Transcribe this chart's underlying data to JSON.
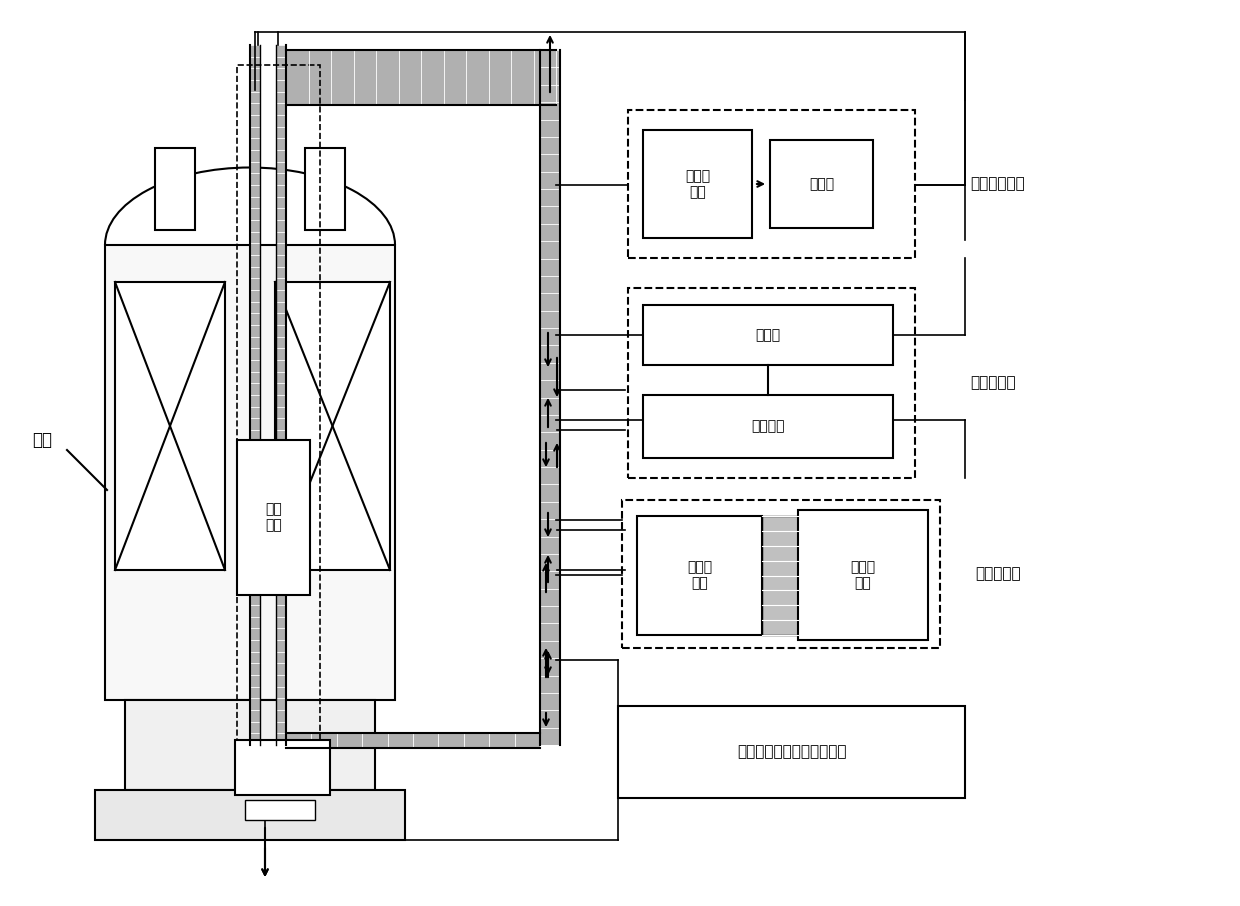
{
  "background_color": "#ffffff",
  "line_color": "#000000",
  "labels": {
    "magnet": "磁体",
    "probe": "高温\n探头",
    "gas_flow_controller": "气流控\n制器",
    "protective_gas": "保护气",
    "gas_subsystem": "保护气子系统",
    "temp_controller": "温控件",
    "dc_power": "直流电源",
    "temp_subsystem": "温控子系统",
    "water_monitor": "水流监\n控器",
    "cooling_pump": "冷却循\n环泵",
    "cooling_subsystem": "冷却子系统",
    "nmr_computer": "核磁共振谱仪及控制计算机"
  }
}
